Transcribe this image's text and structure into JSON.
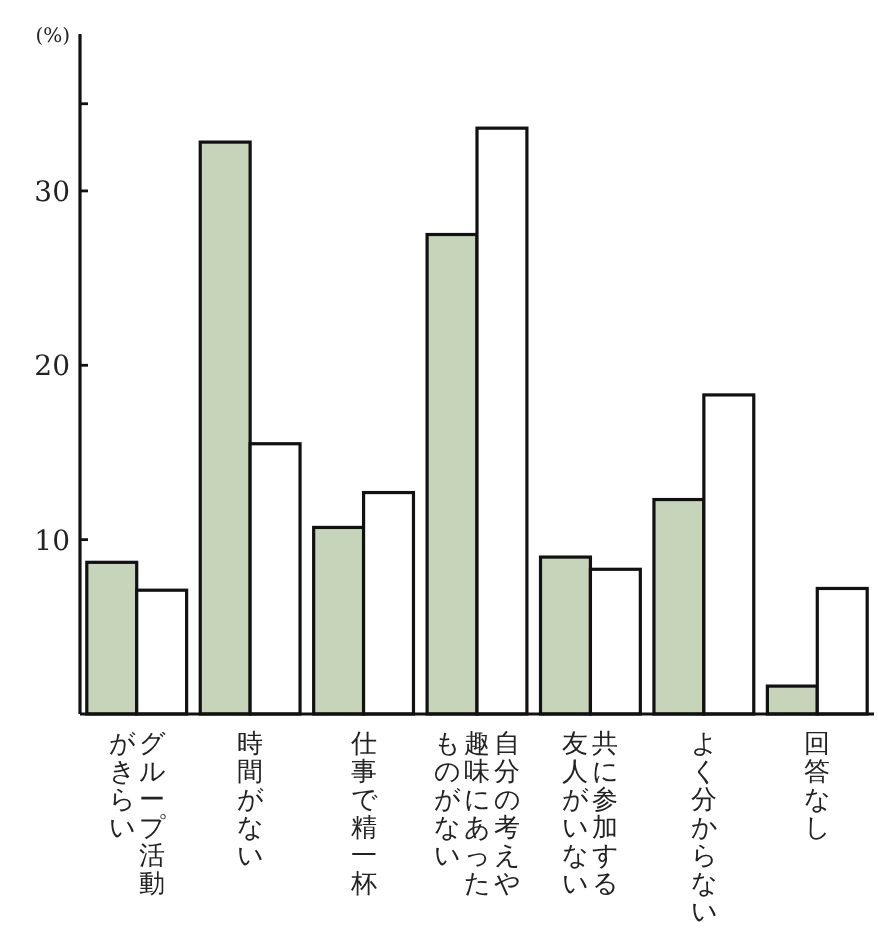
{
  "chart_data": {
    "type": "bar",
    "ylabel": "(%)",
    "categories": [
      "グループ活動がきらい",
      "時間がない",
      "仕事で精一杯",
      "自分の考えや趣味にあったものがない",
      "共に参加する友人がいない",
      "よく分からない",
      "回答なし"
    ],
    "series": [
      {
        "color": "#c6d4b9",
        "values": [
          8.7,
          32.8,
          10.7,
          27.5,
          9.0,
          12.3,
          1.6
        ]
      },
      {
        "color": "#ffffff",
        "values": [
          7.1,
          15.5,
          12.7,
          33.6,
          8.3,
          18.3,
          7.2
        ]
      }
    ],
    "ylim": [
      0,
      39
    ],
    "yticks": [
      10,
      20,
      30,
      {
        "value": 35,
        "label": null
      }
    ]
  }
}
